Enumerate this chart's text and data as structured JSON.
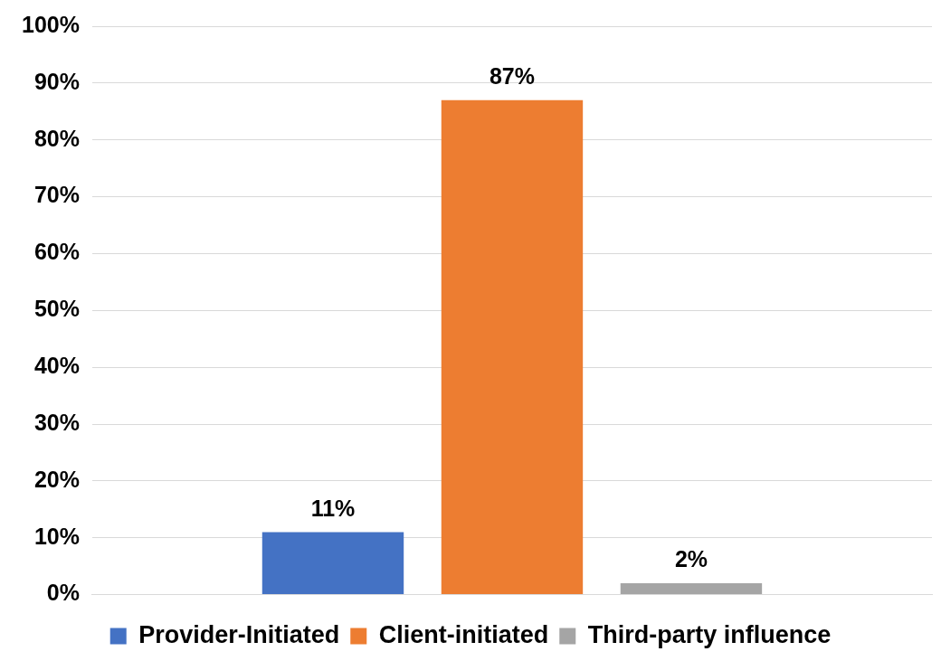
{
  "chart_data": {
    "type": "bar",
    "categories": [
      null
    ],
    "series": [
      {
        "name": "Provider-Initiated",
        "color": "#4472c4",
        "values": [
          11
        ],
        "value_labels": [
          "11%"
        ]
      },
      {
        "name": "Client-initiated",
        "color": "#ed7d31",
        "values": [
          87
        ],
        "value_labels": [
          "87%"
        ]
      },
      {
        "name": "Third-party influence",
        "color": "#a5a5a5",
        "values": [
          2
        ],
        "value_labels": [
          "2%"
        ]
      }
    ],
    "ylim": [
      0,
      100
    ],
    "yticks": [
      {
        "value": 0,
        "label": "0%"
      },
      {
        "value": 10,
        "label": "10%"
      },
      {
        "value": 20,
        "label": "20%"
      },
      {
        "value": 30,
        "label": "30%"
      },
      {
        "value": 40,
        "label": "40%"
      },
      {
        "value": 50,
        "label": "50%"
      },
      {
        "value": 60,
        "label": "60%"
      },
      {
        "value": 70,
        "label": "70%"
      },
      {
        "value": 80,
        "label": "80%"
      },
      {
        "value": 90,
        "label": "90%"
      },
      {
        "value": 100,
        "label": "100%"
      }
    ],
    "grid": "y",
    "legend": "bottom"
  }
}
